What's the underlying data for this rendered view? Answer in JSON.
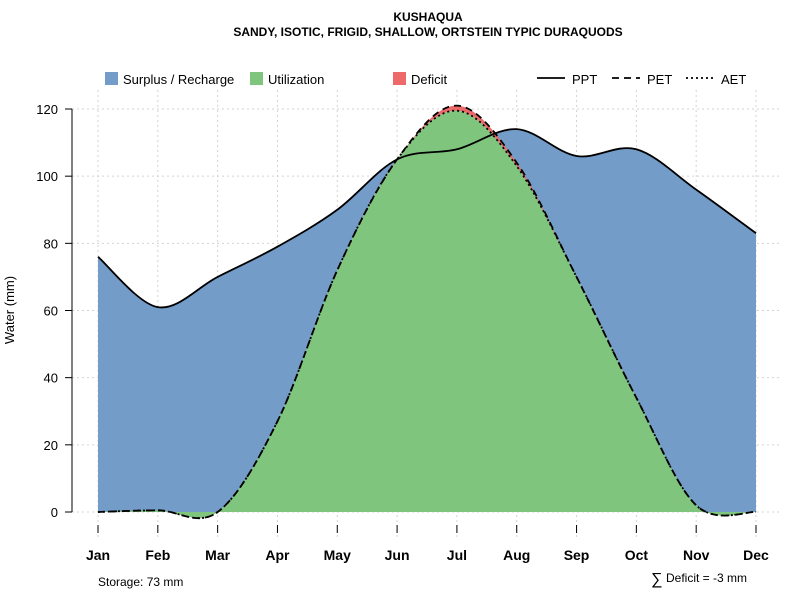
{
  "chart_data": {
    "type": "area",
    "title": "KUSHAQUA",
    "subtitle": "SANDY, ISOTIC, FRIGID, SHALLOW, ORTSTEIN TYPIC DURAQUODS",
    "xlabel": "",
    "ylabel": "Water (mm)",
    "ylim": [
      0,
      125
    ],
    "yticks": [
      0,
      20,
      40,
      60,
      80,
      100,
      120
    ],
    "categories": [
      "Jan",
      "Feb",
      "Mar",
      "Apr",
      "May",
      "Jun",
      "Jul",
      "Aug",
      "Sep",
      "Oct",
      "Nov",
      "Dec"
    ],
    "grid": true,
    "series": [
      {
        "name": "PPT",
        "style": "solid",
        "values": [
          76,
          61,
          70,
          79,
          90,
          105,
          108,
          114,
          106,
          108,
          96,
          83
        ]
      },
      {
        "name": "PET",
        "style": "dashed",
        "values": [
          0,
          0.5,
          0,
          27,
          72,
          105,
          121,
          104,
          70,
          34,
          2,
          0
        ]
      },
      {
        "name": "AET",
        "style": "dotted",
        "values": [
          0,
          0.5,
          0,
          27,
          72,
          105,
          119.5,
          103,
          70,
          34,
          2,
          0
        ]
      }
    ],
    "legend": {
      "placement": "top",
      "fills": [
        {
          "label": "Surplus / Recharge",
          "color": "#739CC8"
        },
        {
          "label": "Utilization",
          "color": "#7FC57D"
        },
        {
          "label": "Deficit",
          "color": "#EE6A6A"
        }
      ],
      "lines": [
        {
          "label": "PPT",
          "style": "solid"
        },
        {
          "label": "PET",
          "style": "dashed"
        },
        {
          "label": "AET",
          "style": "dotted"
        }
      ]
    },
    "annotations": {
      "storage": "Storage: 73 mm",
      "deficit": "Deficit = -3 mm",
      "deficit_symbol": "∑"
    }
  }
}
